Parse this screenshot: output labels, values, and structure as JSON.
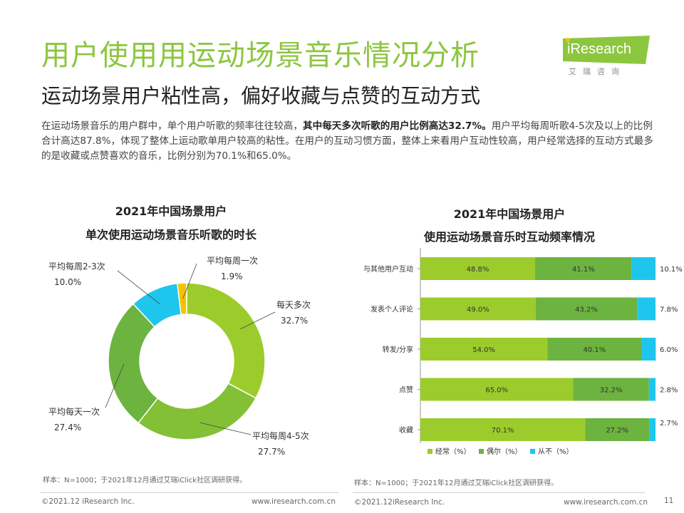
{
  "header": {
    "title": "用户使用用运动场景音乐情况分析",
    "subtitle": "运动场景用户粘性高，偏好收藏与点赞的互动方式",
    "logo_name": "iResearch",
    "logo_sub": "艾瑞咨询"
  },
  "intro": {
    "part1": "在运动场景音乐的用户群中，单个用户听歌的频率往往较高，",
    "bold": "其中每天多次听歌的用户比例高达32.7%。",
    "part2": "用户平均每周听歌4-5次及以上的比例合计高达87.8%，体现了整体上运动歌单用户较高的粘性。在用户的互动习惯方面，整体上来看用户互动性较高，用户经常选择的互动方式最多的是收藏或点赞喜欢的音乐，比例分别为70.1%和65.0%。"
  },
  "left_chart": {
    "title_line1": "2021年中国场景用户",
    "title_line2": "单次使用运动场景音乐听歌的时长",
    "note": "样本：N=1000；于2021年12月通过艾瑞iClick社区调研获得。"
  },
  "right_chart": {
    "title_line1": "2021年中国场景用户",
    "title_line2": "使用运动场景音乐时互动频率情况",
    "note": "样本：N=1000；于2021年12月通过艾瑞iClick社区调研获得。"
  },
  "footer": {
    "left_copyright": "©2021.12 iResearch Inc.",
    "left_url": "www.iresearch.com.cn",
    "right_copyright": "©2021.12iResearch Inc.",
    "right_url": "www.iresearch.com.cn",
    "page_number": "11"
  },
  "colors": {
    "title_green": "#8cc63f",
    "lime": "#9ccc2c",
    "green": "#6cb33f",
    "cyan": "#1ec6ee",
    "yellow": "#f2c400"
  },
  "chart_data": [
    {
      "type": "pie",
      "variant": "donut",
      "slices": [
        {
          "label": "每天多次",
          "value": 32.7,
          "display": "32.7%",
          "color": "#9ccc2c"
        },
        {
          "label": "平均每周4-5次",
          "value": 27.7,
          "display": "27.7%",
          "color": "#83c036"
        },
        {
          "label": "平均每天一次",
          "value": 27.4,
          "display": "27.4%",
          "color": "#6cb33f"
        },
        {
          "label": "平均每周2-3次",
          "value": 10.0,
          "display": "10.0%",
          "color": "#1ec6ee"
        },
        {
          "label": "平均每周一次",
          "value": 1.9,
          "display": "1.9%",
          "color": "#f2c400"
        }
      ]
    },
    {
      "type": "bar",
      "orientation": "horizontal",
      "stacked": true,
      "categories": [
        "与其他用户互动",
        "发表个人评论",
        "转发/分享",
        "点赞",
        "收藏"
      ],
      "series": [
        {
          "name": "经常（%）",
          "color": "#9ccc2c",
          "values": [
            48.8,
            49.0,
            54.0,
            65.0,
            70.1
          ],
          "labels": [
            "48.8%",
            "49.0%",
            "54.0%",
            "65.0%",
            "70.1%"
          ]
        },
        {
          "name": "偶尔（%）",
          "color": "#6cb33f",
          "values": [
            41.1,
            43.2,
            40.1,
            32.2,
            27.2
          ],
          "labels": [
            "41.1%",
            "43.2%",
            "40.1%",
            "32.2%",
            "27.2%"
          ]
        },
        {
          "name": "从不（%）",
          "color": "#1ec6ee",
          "values": [
            10.1,
            7.8,
            6.0,
            2.8,
            2.7
          ],
          "labels": [
            "10.1%",
            "7.8%",
            "6.0%",
            "2.8%",
            "2.7%"
          ]
        }
      ],
      "xlim": [
        0,
        100
      ],
      "legend": "bottom"
    }
  ]
}
